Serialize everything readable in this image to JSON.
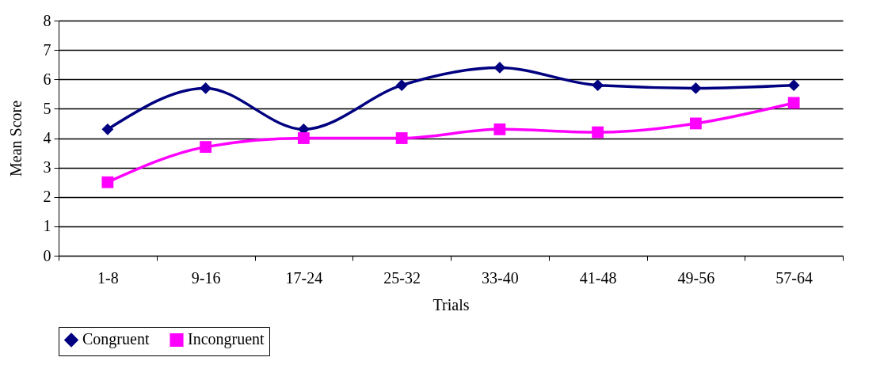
{
  "chart_data": {
    "type": "line",
    "xlabel": "Trials",
    "ylabel": "Mean Score",
    "categories": [
      "1-8",
      "9-16",
      "17-24",
      "25-32",
      "33-40",
      "41-48",
      "49-56",
      "57-64"
    ],
    "series": [
      {
        "name": "Congruent",
        "color": "#000080",
        "marker": "diamond",
        "values": [
          4.3,
          5.7,
          4.3,
          5.8,
          6.4,
          5.8,
          5.7,
          5.8
        ]
      },
      {
        "name": "Incongruent",
        "color": "#ff00ff",
        "marker": "square",
        "values": [
          2.5,
          3.7,
          4.0,
          4.0,
          4.3,
          4.2,
          4.5,
          5.2
        ]
      }
    ],
    "ylim": [
      0,
      8
    ],
    "yticks": [
      0,
      1,
      2,
      3,
      4,
      5,
      6,
      7,
      8
    ],
    "grid": "y",
    "legend": "bottom",
    "line_style": "solid"
  }
}
